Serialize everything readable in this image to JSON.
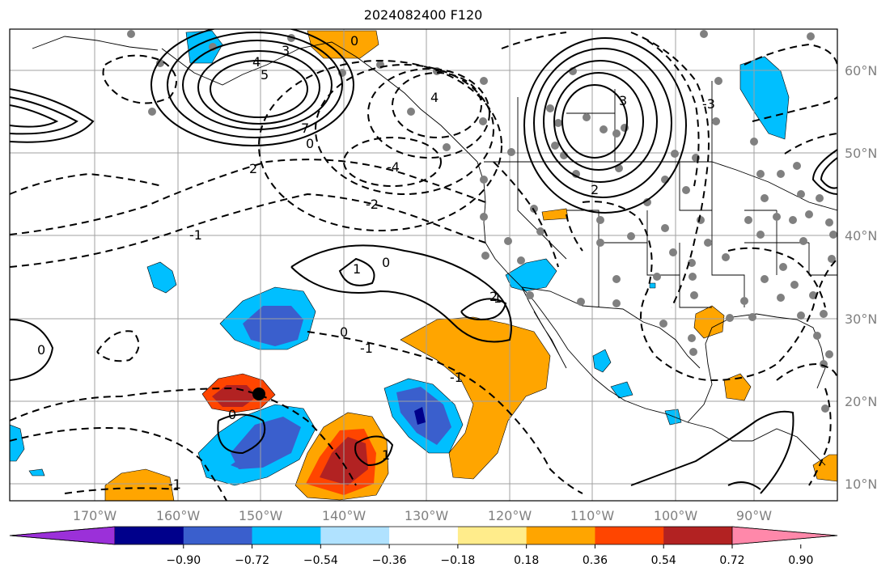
{
  "title": "2024082400 F120",
  "map": {
    "lon_labels": [
      "170°W",
      "160°W",
      "150°W",
      "140°W",
      "130°W",
      "120°W",
      "110°W",
      "100°W",
      "90°W"
    ],
    "lat_labels": [
      "60°N",
      "50°N",
      "40°N",
      "30°N",
      "20°N",
      "10°N"
    ],
    "contour_labels": [
      "0",
      "3",
      "4",
      "5",
      "7",
      "0",
      "4",
      "2",
      "-4",
      "2",
      "-2",
      "1",
      "0",
      "-1",
      "1",
      "0",
      "-1",
      "0",
      "-1",
      "0",
      "1",
      "2",
      "3",
      "-3",
      "-1"
    ],
    "storm_marker": {
      "lon": -150.2,
      "lat": 20.8
    }
  },
  "colorbar": {
    "ticks": [
      "−0.90",
      "−0.72",
      "−0.54",
      "−0.36",
      "−0.18",
      "0.18",
      "0.36",
      "0.54",
      "0.72",
      "0.90"
    ],
    "colors": [
      "#9b30d9",
      "#00008b",
      "#3a5fcd",
      "#00bfff",
      "#b0e2ff",
      "#ffffff",
      "#ffec8b",
      "#ffa500",
      "#ff4500",
      "#b22222",
      "#ff88aa"
    ]
  }
}
